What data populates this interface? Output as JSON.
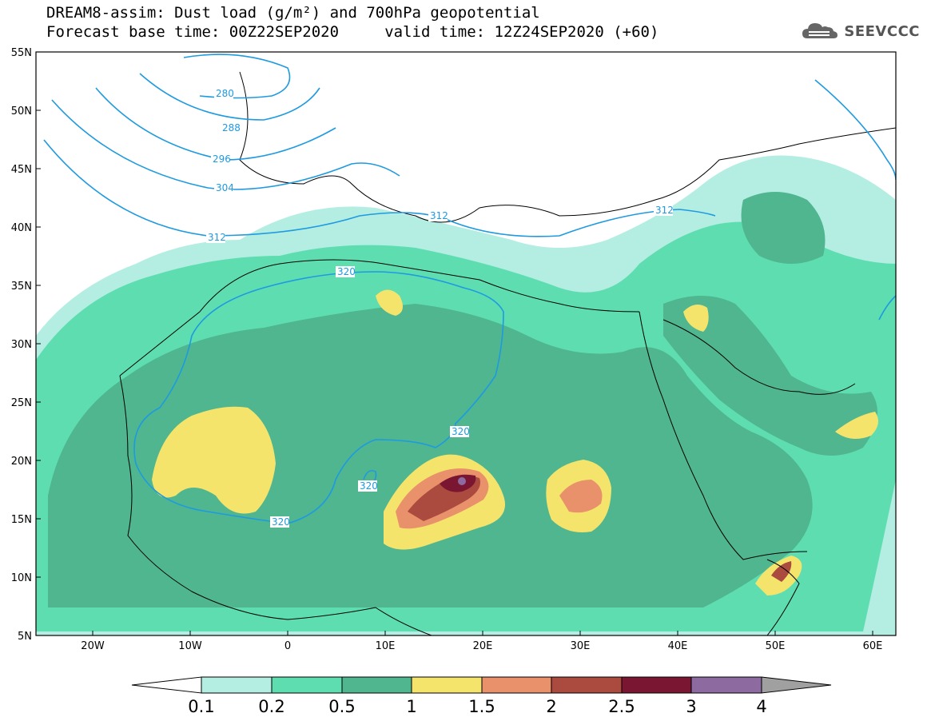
{
  "header": {
    "title_line1": "DREAM8-assim: Dust load (g/m²) and 700hPa geopotential",
    "title_line2": "Forecast base time: 00Z22SEP2020     valid time: 12Z24SEP2020 (+60)"
  },
  "logo": {
    "text": "SEEVCCC",
    "icon": "cloud-icon"
  },
  "axes": {
    "lat_labels": [
      "55N",
      "50N",
      "45N",
      "40N",
      "35N",
      "30N",
      "25N",
      "20N",
      "15N",
      "10N",
      "5N"
    ],
    "lon_labels": [
      "20W",
      "10W",
      "0",
      "10E",
      "20E",
      "30E",
      "40E",
      "50E",
      "60E"
    ]
  },
  "colorbar": {
    "labels": [
      "0.1",
      "0.2",
      "0.5",
      "1",
      "1.5",
      "2",
      "2.5",
      "3",
      "4"
    ],
    "colors": [
      "#b4eee2",
      "#5ede b0",
      "#4fb690",
      "#f5e46c",
      "#e9916b",
      "#ab4a3e",
      "#7a1632",
      "#8d6aa0",
      "#a0a0a0"
    ]
  },
  "contours": {
    "labels": [
      "280",
      "288",
      "296",
      "304",
      "312",
      "312",
      "312",
      "320",
      "320",
      "320",
      "320"
    ]
  },
  "colors": {
    "ocean": "#ffffff",
    "level_01": "#b4eee2",
    "level_02": "#5edeb0",
    "level_05": "#4fb690",
    "level_1": "#f5e46c",
    "level_15": "#e9916b",
    "level_2": "#ab4a3e",
    "level_25": "#7a1632",
    "level_3": "#8d6aa0",
    "contour": "#1e9ae0"
  }
}
